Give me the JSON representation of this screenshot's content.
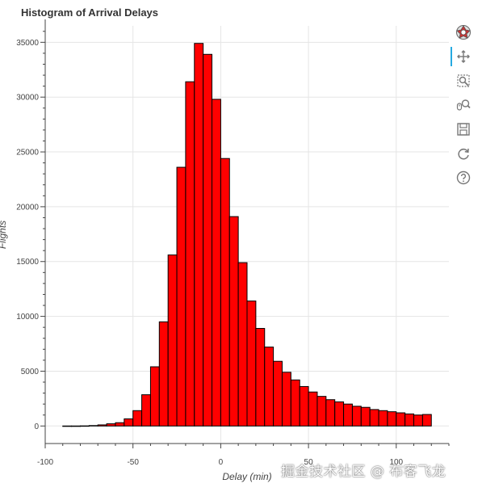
{
  "chart_data": {
    "type": "bar",
    "title": "Histogram of Arrival Delays",
    "xlabel": "Delay (min)",
    "ylabel": "Flights",
    "xlim": [
      -100,
      130
    ],
    "ylim": [
      -1600,
      36500
    ],
    "xticks": [
      -100,
      -50,
      0,
      50,
      100
    ],
    "yticks": [
      0,
      5000,
      10000,
      15000,
      20000,
      25000,
      30000,
      35000
    ],
    "grid": true,
    "bin_width": 5,
    "bar_color": "#ff0000",
    "edge_color": "#000000",
    "bins": [
      {
        "x0": -90,
        "x1": -85,
        "count": 0
      },
      {
        "x0": -85,
        "x1": -80,
        "count": 0
      },
      {
        "x0": -80,
        "x1": -75,
        "count": 10
      },
      {
        "x0": -75,
        "x1": -70,
        "count": 40
      },
      {
        "x0": -70,
        "x1": -65,
        "count": 100
      },
      {
        "x0": -65,
        "x1": -60,
        "count": 200
      },
      {
        "x0": -60,
        "x1": -55,
        "count": 300
      },
      {
        "x0": -55,
        "x1": -50,
        "count": 650
      },
      {
        "x0": -50,
        "x1": -45,
        "count": 1400
      },
      {
        "x0": -45,
        "x1": -40,
        "count": 2850
      },
      {
        "x0": -40,
        "x1": -35,
        "count": 5400
      },
      {
        "x0": -35,
        "x1": -30,
        "count": 9500
      },
      {
        "x0": -30,
        "x1": -25,
        "count": 15600
      },
      {
        "x0": -25,
        "x1": -20,
        "count": 23600
      },
      {
        "x0": -20,
        "x1": -15,
        "count": 31400
      },
      {
        "x0": -15,
        "x1": -10,
        "count": 34900
      },
      {
        "x0": -10,
        "x1": -5,
        "count": 33900
      },
      {
        "x0": -5,
        "x1": 0,
        "count": 29800
      },
      {
        "x0": 0,
        "x1": 5,
        "count": 24400
      },
      {
        "x0": 5,
        "x1": 10,
        "count": 19100
      },
      {
        "x0": 10,
        "x1": 15,
        "count": 14900
      },
      {
        "x0": 15,
        "x1": 20,
        "count": 11400
      },
      {
        "x0": 20,
        "x1": 25,
        "count": 8900
      },
      {
        "x0": 25,
        "x1": 30,
        "count": 7200
      },
      {
        "x0": 30,
        "x1": 35,
        "count": 5900
      },
      {
        "x0": 35,
        "x1": 40,
        "count": 4900
      },
      {
        "x0": 40,
        "x1": 45,
        "count": 4200
      },
      {
        "x0": 45,
        "x1": 50,
        "count": 3600
      },
      {
        "x0": 50,
        "x1": 55,
        "count": 3100
      },
      {
        "x0": 55,
        "x1": 60,
        "count": 2700
      },
      {
        "x0": 60,
        "x1": 65,
        "count": 2400
      },
      {
        "x0": 65,
        "x1": 70,
        "count": 2200
      },
      {
        "x0": 70,
        "x1": 75,
        "count": 2000
      },
      {
        "x0": 75,
        "x1": 80,
        "count": 1800
      },
      {
        "x0": 80,
        "x1": 85,
        "count": 1700
      },
      {
        "x0": 85,
        "x1": 90,
        "count": 1500
      },
      {
        "x0": 90,
        "x1": 95,
        "count": 1400
      },
      {
        "x0": 95,
        "x1": 100,
        "count": 1300
      },
      {
        "x0": 100,
        "x1": 105,
        "count": 1200
      },
      {
        "x0": 105,
        "x1": 110,
        "count": 1100
      },
      {
        "x0": 110,
        "x1": 115,
        "count": 1000
      },
      {
        "x0": 115,
        "x1": 120,
        "count": 1050
      }
    ]
  },
  "toolbar": {
    "items": [
      {
        "icon": "bokeh-logo-icon",
        "active": false
      },
      {
        "icon": "pan-icon",
        "active": true
      },
      {
        "icon": "box-zoom-icon",
        "active": false
      },
      {
        "icon": "wheel-zoom-icon",
        "active": false
      },
      {
        "icon": "save-icon",
        "active": false
      },
      {
        "icon": "reset-icon",
        "active": false
      },
      {
        "icon": "help-icon",
        "active": false
      }
    ]
  },
  "watermark": "掘金技术社区 @ 布客飞龙"
}
